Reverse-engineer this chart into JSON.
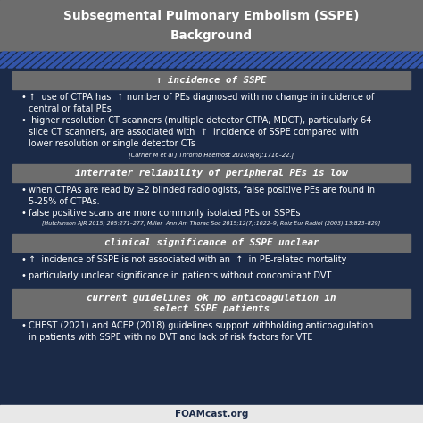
{
  "title_line1": "Subsegmental Pulmonary Embolism (SSPE)",
  "title_line2": "Background",
  "title_bg": "#6d6d6d",
  "title_text_color": "#ffffff",
  "main_bg": "#1b2a47",
  "stripe_blue": "#3355aa",
  "stripe_dark": "#1b2a47",
  "header_bg": "#6d6d6d",
  "header_text_color": "#ffffff",
  "body_text_color": "#ffffff",
  "footer_bg": "#e8e8e8",
  "footer_text": "FOAMcast.org",
  "footer_text_color": "#1b2a47",
  "sections": [
    {
      "header": "↑ incidence of SSPE",
      "header_italic": true,
      "header_multiline": false,
      "bullets": [
        "↑  use of CTPA has  ↑ number of PEs diagnosed with no change in incidence of central or fatal PEs",
        " higher resolution CT scanners (multiple detector CTPA, MDCT), particularly 64 slice CT scanners, are associated with  ↑  incidence of SSPE compared with lower resolution or single detector CTs"
      ],
      "ref": "[Carrier M et al J Thromb Haemost 2010;8(8):1716–22.]"
    },
    {
      "header": "interrater reliability of peripheral PEs is low",
      "header_italic": true,
      "header_multiline": false,
      "bullets": [
        "when CTPAs are read by ≥2 blinded radiologists, false positive PEs are found in 5-25% of CTPAs.",
        "false positive scans are more commonly isolated PEs or SSPEs"
      ],
      "ref": "[Hutchinson AJR 2015; 205:271–277, Miller  Ann Am Thorac Soc 2015;12(7):1022–9, Ruiz Eur Radiol (2003) 13:823–829]"
    },
    {
      "header": "clinical significance of SSPE unclear",
      "header_italic": true,
      "header_multiline": false,
      "bullets": [
        "↑  incidence of SSPE is not associated with an  ↑  in PE-related mortality",
        "particularly unclear significance in patients without concomitant DVT"
      ],
      "ref": ""
    },
    {
      "header": "current guidelines ok no anticoagulation in\nselect SSPE patients",
      "header_italic": true,
      "header_multiline": true,
      "bullets": [
        "CHEST (2021) and ACEP (2018) guidelines support withholding anticoagulation in patients with SSPE with no DVT and lack of risk factors for VTE"
      ],
      "ref": ""
    }
  ]
}
